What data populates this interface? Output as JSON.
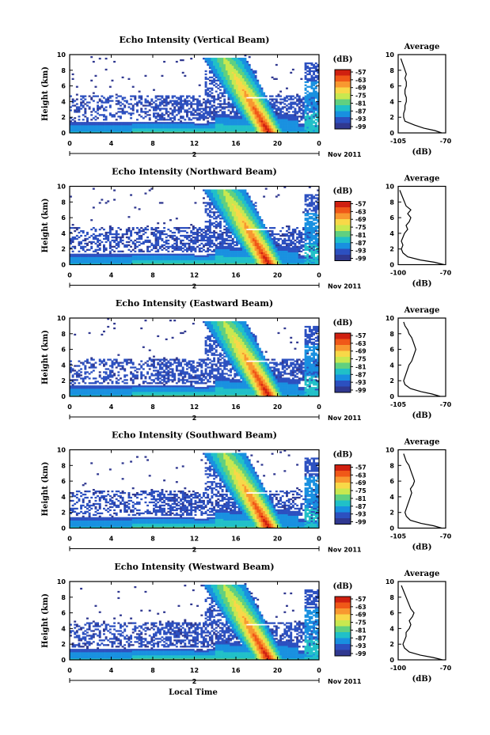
{
  "chart_data": {
    "type": "heatmap",
    "xlabel": "Local Time",
    "ylabel": "Height (km)",
    "x_ticks": [
      "0",
      "4",
      "8",
      "12",
      "16",
      "20",
      "0"
    ],
    "y_ticks": [
      "0",
      "2",
      "4",
      "6",
      "8",
      "10"
    ],
    "xlim": [
      0,
      24
    ],
    "ylim": [
      0,
      10
    ],
    "date_ticks": [
      "2",
      "Nov 2011"
    ],
    "colorbar": {
      "label": "(dB)",
      "ticks": [
        "-57",
        "-63",
        "-69",
        "-75",
        "-81",
        "-87",
        "-93",
        "-99"
      ],
      "colors": [
        "#d02010",
        "#f05818",
        "#f89830",
        "#f8d848",
        "#c8e850",
        "#60d080",
        "#20c0c8",
        "#1890e0",
        "#2c50c0",
        "#303890"
      ]
    },
    "profile": {
      "title": "Average",
      "xlabel": "(dB)",
      "ylabel_ticks": [
        "0",
        "2",
        "4",
        "6",
        "8",
        "10"
      ]
    },
    "panels": [
      {
        "title": "Echo Intensity (Vertical Beam)",
        "profile_x_ticks": [
          "-105",
          "-70"
        ],
        "profile_xlim": [
          -105,
          -70
        ],
        "profile": {
          "height": [
            0.0,
            0.3,
            0.6,
            1.0,
            1.5,
            2.0,
            2.5,
            3.0,
            3.5,
            4.0,
            4.5,
            5.0,
            5.5,
            6.0,
            6.5,
            7.0,
            7.5,
            8.0,
            8.5,
            9.0,
            9.5
          ],
          "db": [
            -73,
            -78,
            -86,
            -93,
            -100,
            -101,
            -101,
            -100,
            -100,
            -99,
            -99,
            -100,
            -100,
            -99,
            -99,
            -100,
            -99,
            -100,
            -101,
            -102,
            -103
          ]
        }
      },
      {
        "title": "Echo Intensity (Northward Beam)",
        "profile_x_ticks": [
          "-100",
          "-70"
        ],
        "profile_xlim": [
          -100,
          -70
        ],
        "profile": {
          "height": [
            0.0,
            0.3,
            0.6,
            1.0,
            1.5,
            2.0,
            2.5,
            3.0,
            3.5,
            4.0,
            4.5,
            5.0,
            5.5,
            6.0,
            6.5,
            7.0,
            7.5,
            8.0,
            8.5,
            9.0,
            9.5
          ],
          "db": [
            -71,
            -77,
            -86,
            -94,
            -97,
            -98,
            -97,
            -98,
            -97,
            -96,
            -94,
            -95,
            -93,
            -92,
            -94,
            -92,
            -95,
            -96,
            -97,
            -98,
            -99
          ]
        }
      },
      {
        "title": "Echo Intensity (Eastward Beam)",
        "profile_x_ticks": [
          "-105",
          "-70"
        ],
        "profile_xlim": [
          -105,
          -70
        ],
        "profile": {
          "height": [
            0.0,
            0.3,
            0.6,
            1.0,
            1.5,
            2.0,
            2.5,
            3.0,
            3.5,
            4.0,
            4.5,
            5.0,
            5.5,
            6.0,
            6.5,
            7.0,
            7.5,
            8.0,
            8.5,
            9.0,
            9.5
          ],
          "db": [
            -74,
            -80,
            -88,
            -96,
            -100,
            -101,
            -100,
            -99,
            -98,
            -97,
            -95,
            -94,
            -93,
            -92,
            -93,
            -94,
            -95,
            -97,
            -98,
            -100,
            -101
          ]
        }
      },
      {
        "title": "Echo Intensity (Southward Beam)",
        "profile_x_ticks": [
          "-105",
          "-70"
        ],
        "profile_xlim": [
          -105,
          -70
        ],
        "profile": {
          "height": [
            0.0,
            0.3,
            0.6,
            1.0,
            1.5,
            2.0,
            2.5,
            3.0,
            3.5,
            4.0,
            4.5,
            5.0,
            5.5,
            6.0,
            6.5,
            7.0,
            7.5,
            8.0,
            8.5,
            9.0,
            9.5
          ],
          "db": [
            -73,
            -79,
            -88,
            -96,
            -99,
            -100,
            -99,
            -98,
            -97,
            -96,
            -95,
            -96,
            -94,
            -93,
            -94,
            -95,
            -96,
            -97,
            -99,
            -100,
            -101
          ]
        }
      },
      {
        "title": "Echo Intensity (Westward Beam)",
        "profile_x_ticks": [
          "-100",
          "-70"
        ],
        "profile_xlim": [
          -100,
          -70
        ],
        "profile": {
          "height": [
            0.0,
            0.3,
            0.6,
            1.0,
            1.5,
            2.0,
            2.5,
            3.0,
            3.5,
            4.0,
            4.5,
            5.0,
            5.5,
            6.0,
            6.5,
            7.0,
            7.5,
            8.0,
            8.5,
            9.0,
            9.5
          ],
          "db": [
            -72,
            -78,
            -86,
            -93,
            -96,
            -97,
            -96,
            -95,
            -95,
            -93,
            -92,
            -93,
            -91,
            -90,
            -92,
            -93,
            -94,
            -95,
            -96,
            -97,
            -98
          ]
        }
      }
    ]
  }
}
